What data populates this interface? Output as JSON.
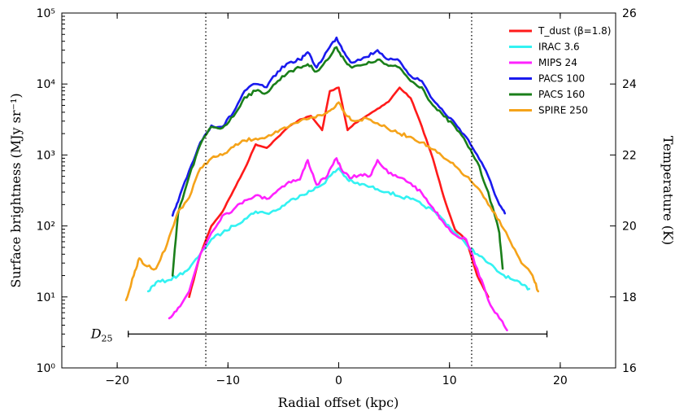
{
  "chart_data": {
    "type": "line",
    "xlabel": "Radial offset (kpc)",
    "ylabel": "Surface brightness (MJy sr⁻¹)",
    "ylabel_right": "Temperature (K)",
    "xlim": [
      -25,
      25
    ],
    "ylim_log": [
      1,
      100000
    ],
    "ylim_right": [
      16,
      26
    ],
    "x_ticks": [
      -20,
      -10,
      0,
      10,
      20
    ],
    "x_tick_labels": [
      "−20",
      "−10",
      "0",
      "10",
      "20"
    ],
    "y_ticks": [
      1,
      10,
      100,
      1000,
      10000,
      100000
    ],
    "y_tick_labels": [
      "10⁰",
      "10¹",
      "10²",
      "10³",
      "10⁴",
      "10⁵"
    ],
    "y_right_ticks": [
      16,
      18,
      20,
      22,
      24,
      26
    ],
    "y_right_tick_labels": [
      "16",
      "18",
      "20",
      "22",
      "24",
      "26"
    ],
    "vlines": [
      -12,
      12
    ],
    "d25": {
      "label": "D25",
      "x_start": -19,
      "x_end": 18.8,
      "y": 3
    },
    "legend_position": "top-right",
    "series": [
      {
        "name": "T_dust (β=1.8)",
        "color": "#ff1a1a",
        "axis": "right",
        "x": [
          -13.5,
          -12.5,
          -11.5,
          -10.5,
          -9.5,
          -8.5,
          -7.5,
          -6.5,
          -5.5,
          -4.5,
          -3.5,
          -2.5,
          -1.5,
          -0.8,
          0,
          0.8,
          1.5,
          2.5,
          3.5,
          4.5,
          5.5,
          6.5,
          7.5,
          8.5,
          9.5,
          10.5,
          11.5,
          12.5,
          13.5
        ],
        "y": [
          18,
          19.2,
          20,
          20.4,
          21,
          21.6,
          22.3,
          22.2,
          22.5,
          22.8,
          23,
          23.1,
          22.7,
          23.8,
          23.9,
          22.7,
          22.9,
          23.1,
          23.3,
          23.5,
          23.9,
          23.6,
          22.8,
          21.9,
          20.8,
          19.9,
          19.6,
          18.6,
          18
        ]
      },
      {
        "name": "IRAC 3.6",
        "color": "#33f2f2",
        "axis": "left",
        "x": [
          -17.2,
          -16.5,
          -15.5,
          -14.5,
          -13.5,
          -12.5,
          -11.5,
          -10.5,
          -9.5,
          -8.5,
          -7.5,
          -6.5,
          -5.5,
          -4.5,
          -3.5,
          -2.5,
          -1.5,
          -0.8,
          0,
          0.8,
          1.5,
          2.5,
          3.5,
          4.5,
          5.5,
          6.5,
          7.5,
          8.5,
          9.5,
          10.5,
          11.5,
          12.5,
          13.5,
          14.5,
          15.5,
          16.5,
          17.2
        ],
        "y": [
          12,
          16,
          17,
          20,
          25,
          40,
          65,
          80,
          100,
          125,
          160,
          150,
          170,
          220,
          270,
          310,
          380,
          500,
          650,
          450,
          400,
          370,
          330,
          300,
          260,
          240,
          200,
          165,
          120,
          80,
          55,
          40,
          30,
          22,
          18,
          15,
          13
        ]
      },
      {
        "name": "MIPS 24",
        "color": "#ff22ff",
        "axis": "left",
        "x": [
          -15.3,
          -14.5,
          -13.5,
          -12.5,
          -11.5,
          -10.5,
          -9.5,
          -8.5,
          -7.5,
          -6.5,
          -5.5,
          -4.5,
          -3.5,
          -2.8,
          -2,
          -1,
          -0.2,
          0.2,
          1,
          2,
          2.8,
          3.5,
          4.5,
          5.5,
          6.5,
          7.5,
          8.5,
          9.5,
          10.5,
          11.5,
          12.5,
          13.5,
          14.5,
          15.2
        ],
        "y": [
          5,
          7,
          12,
          40,
          80,
          140,
          170,
          230,
          270,
          240,
          320,
          420,
          450,
          850,
          380,
          520,
          900,
          650,
          470,
          530,
          500,
          850,
          550,
          480,
          400,
          290,
          180,
          110,
          75,
          65,
          25,
          9,
          5,
          3.4
        ]
      },
      {
        "name": "PACS 100",
        "color": "#1a1aee",
        "axis": "left",
        "x": [
          -15,
          -14.5,
          -13.5,
          -12.5,
          -11.5,
          -10.5,
          -9.5,
          -8.5,
          -7.5,
          -6.5,
          -5.5,
          -4.5,
          -3.5,
          -2.8,
          -2,
          -1,
          -0.2,
          0.5,
          1.2,
          2.5,
          3.5,
          4.5,
          5.5,
          6.5,
          7.5,
          8.5,
          9.5,
          10.5,
          11.5,
          12.5,
          13.5,
          14.5,
          15
        ],
        "y": [
          140,
          220,
          600,
          1500,
          2600,
          2500,
          4000,
          8000,
          10000,
          9000,
          15000,
          20000,
          22000,
          28000,
          17000,
          30000,
          45000,
          28000,
          20000,
          24000,
          30000,
          22000,
          21000,
          13000,
          11000,
          6000,
          4000,
          2800,
          1800,
          1000,
          500,
          200,
          150
        ]
      },
      {
        "name": "PACS 160",
        "color": "#1a7f1a",
        "axis": "left",
        "x": [
          -15,
          -14.5,
          -13.5,
          -12.5,
          -11.5,
          -10.5,
          -9.5,
          -8.5,
          -7.5,
          -6.5,
          -5.5,
          -4.5,
          -3.5,
          -2.8,
          -2,
          -1,
          -0.2,
          0.5,
          1.2,
          2.5,
          3.5,
          4.5,
          5.5,
          6.5,
          7.5,
          8.5,
          9.5,
          10.5,
          11.5,
          12.5,
          13.5,
          14.5,
          14.8
        ],
        "y": [
          20,
          150,
          500,
          1400,
          2500,
          2400,
          3500,
          6500,
          8000,
          7500,
          11000,
          15000,
          17000,
          19000,
          15000,
          22000,
          33000,
          22000,
          17000,
          19000,
          22000,
          18000,
          17000,
          11000,
          9000,
          5000,
          3500,
          2500,
          1500,
          800,
          300,
          80,
          25
        ]
      },
      {
        "name": "SPIRE 250",
        "color": "#f5a31a",
        "axis": "left",
        "x": [
          -19.2,
          -18.5,
          -18,
          -17.5,
          -16.5,
          -15.5,
          -14.5,
          -13.5,
          -12.5,
          -11.5,
          -10.5,
          -9.5,
          -8.5,
          -7.5,
          -6.5,
          -5.5,
          -4.5,
          -3.5,
          -2.5,
          -1.5,
          -0.8,
          0,
          0.8,
          1.5,
          2.5,
          3.5,
          4.5,
          5.5,
          6.5,
          7.5,
          8.5,
          9.5,
          10.5,
          11.5,
          12.5,
          13.5,
          14.5,
          15.5,
          16.5,
          17.5,
          18
        ],
        "y": [
          9,
          20,
          35,
          28,
          25,
          55,
          160,
          250,
          650,
          900,
          1000,
          1300,
          1600,
          1700,
          1800,
          2100,
          2500,
          3000,
          3400,
          3600,
          4200,
          5500,
          3500,
          3000,
          3300,
          2800,
          2300,
          2000,
          1800,
          1500,
          1200,
          900,
          700,
          500,
          350,
          200,
          120,
          60,
          30,
          20,
          12
        ]
      }
    ]
  }
}
